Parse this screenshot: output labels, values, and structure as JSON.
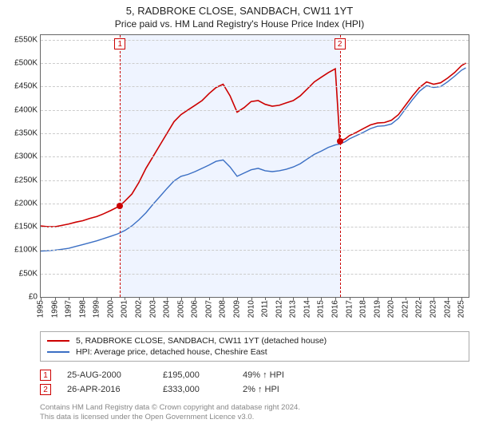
{
  "title": "5, RADBROKE CLOSE, SANDBACH, CW11 1YT",
  "subtitle": "Price paid vs. HM Land Registry's House Price Index (HPI)",
  "chart": {
    "type": "line",
    "x_start_year": 1995,
    "x_end_year": 2025.5,
    "x_ticks": [
      1995,
      1996,
      1997,
      1998,
      1999,
      2000,
      2001,
      2002,
      2003,
      2004,
      2005,
      2006,
      2007,
      2008,
      2009,
      2010,
      2011,
      2012,
      2013,
      2014,
      2015,
      2016,
      2017,
      2018,
      2019,
      2020,
      2021,
      2022,
      2023,
      2024,
      2025
    ],
    "ylim": [
      0,
      560000
    ],
    "y_ticks": [
      0,
      50000,
      100000,
      150000,
      200000,
      250000,
      300000,
      350000,
      400000,
      450000,
      500000,
      550000
    ],
    "y_tick_labels": [
      "£0",
      "£50K",
      "£100K",
      "£150K",
      "£200K",
      "£250K",
      "£300K",
      "£350K",
      "£400K",
      "£450K",
      "£500K",
      "£550K"
    ],
    "background_color": "#ffffff",
    "grid_color": "#cccccc",
    "axis_color": "#666666",
    "shade_band": {
      "start": 2000.65,
      "end": 2016.32,
      "color": "rgba(100,150,255,0.10)"
    },
    "series": [
      {
        "name": "property",
        "label": "5, RADBROKE CLOSE, SANDBACH, CW11 1YT (detached house)",
        "color": "#cc0000",
        "line_width": 1.6,
        "points": [
          [
            1995.0,
            152000
          ],
          [
            1995.5,
            150000
          ],
          [
            1996.0,
            150000
          ],
          [
            1996.5,
            153000
          ],
          [
            1997.0,
            156000
          ],
          [
            1997.5,
            160000
          ],
          [
            1998.0,
            163000
          ],
          [
            1998.5,
            168000
          ],
          [
            1999.0,
            172000
          ],
          [
            1999.5,
            178000
          ],
          [
            2000.0,
            185000
          ],
          [
            2000.65,
            195000
          ],
          [
            2001.0,
            205000
          ],
          [
            2001.5,
            220000
          ],
          [
            2002.0,
            245000
          ],
          [
            2002.5,
            275000
          ],
          [
            2003.0,
            300000
          ],
          [
            2003.5,
            325000
          ],
          [
            2004.0,
            350000
          ],
          [
            2004.5,
            375000
          ],
          [
            2005.0,
            390000
          ],
          [
            2005.5,
            400000
          ],
          [
            2006.0,
            410000
          ],
          [
            2006.5,
            420000
          ],
          [
            2007.0,
            435000
          ],
          [
            2007.5,
            448000
          ],
          [
            2008.0,
            455000
          ],
          [
            2008.5,
            430000
          ],
          [
            2009.0,
            395000
          ],
          [
            2009.5,
            405000
          ],
          [
            2010.0,
            418000
          ],
          [
            2010.5,
            420000
          ],
          [
            2011.0,
            412000
          ],
          [
            2011.5,
            408000
          ],
          [
            2012.0,
            410000
          ],
          [
            2012.5,
            415000
          ],
          [
            2013.0,
            420000
          ],
          [
            2013.5,
            430000
          ],
          [
            2014.0,
            445000
          ],
          [
            2014.5,
            460000
          ],
          [
            2015.0,
            470000
          ],
          [
            2015.5,
            480000
          ],
          [
            2016.0,
            488000
          ],
          [
            2016.32,
            333000
          ],
          [
            2016.7,
            338000
          ],
          [
            2017.0,
            345000
          ],
          [
            2017.5,
            352000
          ],
          [
            2018.0,
            360000
          ],
          [
            2018.5,
            368000
          ],
          [
            2019.0,
            372000
          ],
          [
            2019.5,
            373000
          ],
          [
            2020.0,
            378000
          ],
          [
            2020.5,
            390000
          ],
          [
            2021.0,
            410000
          ],
          [
            2021.5,
            430000
          ],
          [
            2022.0,
            448000
          ],
          [
            2022.5,
            460000
          ],
          [
            2023.0,
            455000
          ],
          [
            2023.5,
            458000
          ],
          [
            2024.0,
            468000
          ],
          [
            2024.5,
            480000
          ],
          [
            2025.0,
            495000
          ],
          [
            2025.3,
            500000
          ]
        ]
      },
      {
        "name": "hpi",
        "label": "HPI: Average price, detached house, Cheshire East",
        "color": "#3b6fc4",
        "line_width": 1.4,
        "points": [
          [
            1995.0,
            98000
          ],
          [
            1995.5,
            99000
          ],
          [
            1996.0,
            100000
          ],
          [
            1996.5,
            102000
          ],
          [
            1997.0,
            104000
          ],
          [
            1997.5,
            108000
          ],
          [
            1998.0,
            112000
          ],
          [
            1998.5,
            116000
          ],
          [
            1999.0,
            120000
          ],
          [
            1999.5,
            125000
          ],
          [
            2000.0,
            130000
          ],
          [
            2000.5,
            135000
          ],
          [
            2001.0,
            142000
          ],
          [
            2001.5,
            152000
          ],
          [
            2002.0,
            165000
          ],
          [
            2002.5,
            180000
          ],
          [
            2003.0,
            198000
          ],
          [
            2003.5,
            215000
          ],
          [
            2004.0,
            232000
          ],
          [
            2004.5,
            248000
          ],
          [
            2005.0,
            258000
          ],
          [
            2005.5,
            262000
          ],
          [
            2006.0,
            268000
          ],
          [
            2006.5,
            275000
          ],
          [
            2007.0,
            282000
          ],
          [
            2007.5,
            290000
          ],
          [
            2008.0,
            293000
          ],
          [
            2008.5,
            278000
          ],
          [
            2009.0,
            258000
          ],
          [
            2009.5,
            265000
          ],
          [
            2010.0,
            272000
          ],
          [
            2010.5,
            275000
          ],
          [
            2011.0,
            270000
          ],
          [
            2011.5,
            268000
          ],
          [
            2012.0,
            270000
          ],
          [
            2012.5,
            273000
          ],
          [
            2013.0,
            278000
          ],
          [
            2013.5,
            285000
          ],
          [
            2014.0,
            295000
          ],
          [
            2014.5,
            305000
          ],
          [
            2015.0,
            312000
          ],
          [
            2015.5,
            320000
          ],
          [
            2016.0,
            325000
          ],
          [
            2016.32,
            327000
          ],
          [
            2016.7,
            332000
          ],
          [
            2017.0,
            338000
          ],
          [
            2017.5,
            345000
          ],
          [
            2018.0,
            352000
          ],
          [
            2018.5,
            360000
          ],
          [
            2019.0,
            365000
          ],
          [
            2019.5,
            366000
          ],
          [
            2020.0,
            370000
          ],
          [
            2020.5,
            382000
          ],
          [
            2021.0,
            402000
          ],
          [
            2021.5,
            422000
          ],
          [
            2022.0,
            440000
          ],
          [
            2022.5,
            452000
          ],
          [
            2023.0,
            448000
          ],
          [
            2023.5,
            450000
          ],
          [
            2024.0,
            460000
          ],
          [
            2024.5,
            472000
          ],
          [
            2025.0,
            485000
          ],
          [
            2025.3,
            490000
          ]
        ]
      }
    ],
    "sale_markers": [
      {
        "flag": "1",
        "year": 2000.65,
        "price": 195000,
        "dot_color": "#cc0000",
        "flag_border": "#cc0000"
      },
      {
        "flag": "2",
        "year": 2016.32,
        "price": 333000,
        "dot_color": "#cc0000",
        "flag_border": "#cc0000"
      }
    ]
  },
  "legend": [
    {
      "color": "#cc0000",
      "label": "5, RADBROKE CLOSE, SANDBACH, CW11 1YT (detached house)"
    },
    {
      "color": "#3b6fc4",
      "label": "HPI: Average price, detached house, Cheshire East"
    }
  ],
  "sales": [
    {
      "flag": "1",
      "date": "25-AUG-2000",
      "price": "£195,000",
      "delta": "49% ↑ HPI"
    },
    {
      "flag": "2",
      "date": "26-APR-2016",
      "price": "£333,000",
      "delta": "2% ↑ HPI"
    }
  ],
  "footer_line1": "Contains HM Land Registry data © Crown copyright and database right 2024.",
  "footer_line2": "This data is licensed under the Open Government Licence v3.0."
}
